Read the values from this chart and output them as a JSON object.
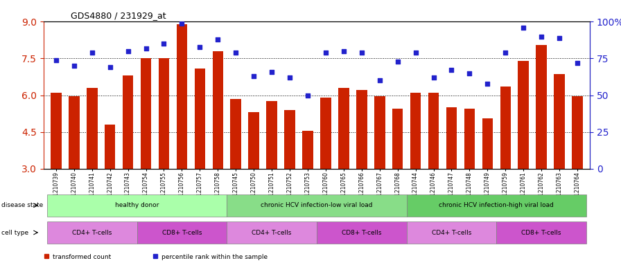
{
  "title": "GDS4880 / 231929_at",
  "samples": [
    "GSM1210739",
    "GSM1210740",
    "GSM1210741",
    "GSM1210742",
    "GSM1210743",
    "GSM1210754",
    "GSM1210755",
    "GSM1210756",
    "GSM1210757",
    "GSM1210758",
    "GSM1210745",
    "GSM1210750",
    "GSM1210751",
    "GSM1210752",
    "GSM1210753",
    "GSM1210760",
    "GSM1210765",
    "GSM1210766",
    "GSM1210767",
    "GSM1210768",
    "GSM1210744",
    "GSM1210746",
    "GSM1210747",
    "GSM1210748",
    "GSM1210749",
    "GSM1210759",
    "GSM1210761",
    "GSM1210762",
    "GSM1210763",
    "GSM1210764"
  ],
  "bar_values": [
    6.1,
    5.95,
    6.3,
    4.8,
    6.8,
    7.5,
    7.5,
    8.9,
    7.1,
    7.8,
    5.85,
    5.3,
    5.75,
    5.4,
    4.55,
    5.9,
    6.3,
    6.2,
    5.95,
    5.45,
    6.1,
    6.1,
    5.5,
    5.45,
    5.05,
    6.35,
    7.4,
    8.05,
    6.85,
    5.95
  ],
  "percentile_values": [
    74,
    70,
    79,
    69,
    80,
    82,
    85,
    99,
    83,
    88,
    79,
    63,
    66,
    62,
    50,
    79,
    80,
    79,
    60,
    73,
    79,
    62,
    67,
    65,
    58,
    79,
    96,
    90,
    89,
    72
  ],
  "ylim_left": [
    3,
    9
  ],
  "ylim_right": [
    0,
    100
  ],
  "yticks_left": [
    3,
    4.5,
    6,
    7.5,
    9
  ],
  "yticks_right": [
    0,
    25,
    50,
    75,
    100
  ],
  "bar_color": "#cc2200",
  "dot_color": "#2222cc",
  "bg_color": "#ffffff",
  "disease_state_groups": [
    {
      "label": "healthy donor",
      "start": 0,
      "end": 9,
      "color": "#aaffaa"
    },
    {
      "label": "chronic HCV infection-low viral load",
      "start": 10,
      "end": 19,
      "color": "#88dd88"
    },
    {
      "label": "chronic HCV infection-high viral load",
      "start": 20,
      "end": 29,
      "color": "#66cc66"
    }
  ],
  "cell_type_groups": [
    {
      "label": "CD4+ T-cells",
      "start": 0,
      "end": 4,
      "color": "#dd88dd"
    },
    {
      "label": "CD8+ T-cells",
      "start": 5,
      "end": 9,
      "color": "#cc55cc"
    },
    {
      "label": "CD4+ T-cells",
      "start": 10,
      "end": 14,
      "color": "#dd88dd"
    },
    {
      "label": "CD8+ T-cells",
      "start": 15,
      "end": 19,
      "color": "#cc55cc"
    },
    {
      "label": "CD4+ T-cells",
      "start": 20,
      "end": 24,
      "color": "#dd88dd"
    },
    {
      "label": "CD8+ T-cells",
      "start": 25,
      "end": 29,
      "color": "#cc55cc"
    }
  ],
  "legend_items": [
    {
      "label": "transformed count",
      "color": "#cc2200",
      "marker": "s"
    },
    {
      "label": "percentile rank within the sample",
      "color": "#2222cc",
      "marker": "s"
    }
  ]
}
